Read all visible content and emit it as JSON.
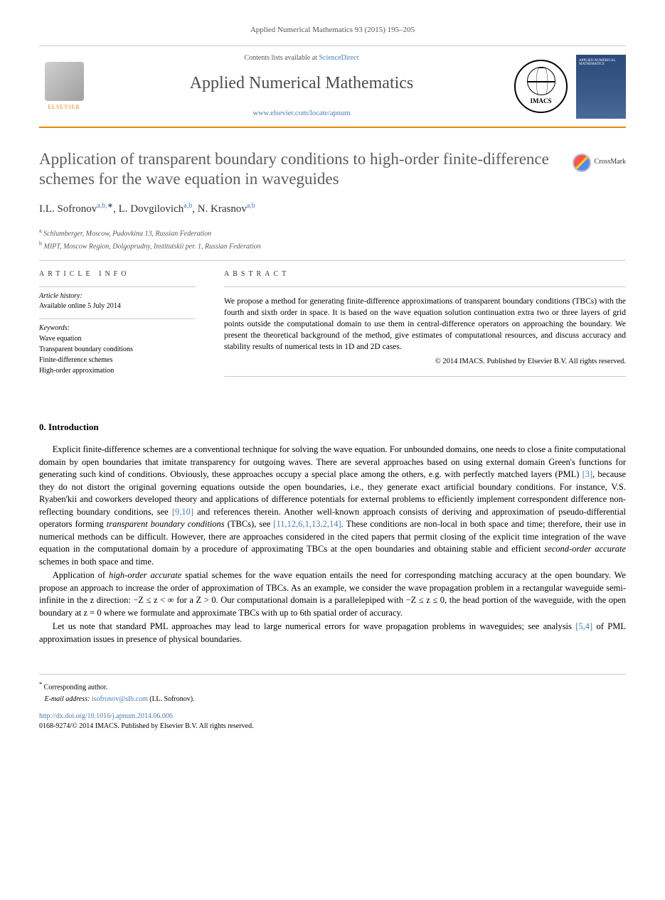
{
  "citation": "Applied Numerical Mathematics 93 (2015) 195–205",
  "header": {
    "contents_prefix": "Contents lists available at ",
    "contents_link": "ScienceDirect",
    "journal_title": "Applied Numerical Mathematics",
    "journal_url": "www.elsevier.com/locate/apnum",
    "elsevier_label": "ELSEVIER",
    "imacs_label": "IMACS",
    "cover_title": "APPLIED NUMERICAL MATHEMATICS"
  },
  "crossmark_label": "CrossMark",
  "title": "Application of transparent boundary conditions to high-order finite-difference schemes for the wave equation in waveguides",
  "authors": [
    {
      "name": "I.L. Sofronov",
      "affil": "a,b,",
      "star": "∗"
    },
    {
      "name": "L. Dovgilovich",
      "affil": "a,b",
      "star": ""
    },
    {
      "name": "N. Krasnov",
      "affil": "a,b",
      "star": ""
    }
  ],
  "affiliations": [
    {
      "marker": "a",
      "text": "Schlumberger, Moscow, Pudovkina 13, Russian Federation"
    },
    {
      "marker": "b",
      "text": "MIPT, Moscow Region, Dolgoprudny, Institutskii per. 1, Russian Federation"
    }
  ],
  "article_info": {
    "heading": "ARTICLE INFO",
    "history_label": "Article history:",
    "history_text": "Available online 5 July 2014",
    "keywords_label": "Keywords:",
    "keywords": [
      "Wave equation",
      "Transparent boundary conditions",
      "Finite-difference schemes",
      "High-order approximation"
    ]
  },
  "abstract": {
    "heading": "ABSTRACT",
    "text": "We propose a method for generating finite-difference approximations of transparent boundary conditions (TBCs) with the fourth and sixth order in space. It is based on the wave equation solution continuation extra two or three layers of grid points outside the computational domain to use them in central-difference operators on approaching the boundary. We present the theoretical background of the method, give estimates of computational resources, and discuss accuracy and stability results of numerical tests in 1D and 2D cases.",
    "copyright": "© 2014 IMACS. Published by Elsevier B.V. All rights reserved."
  },
  "intro": {
    "heading": "0. Introduction",
    "p1_a": "Explicit finite-difference schemes are a conventional technique for solving the wave equation. For unbounded domains, one needs to close a finite computational domain by open boundaries that imitate transparency for outgoing waves. There are several approaches based on using external domain Green's functions for generating such kind of conditions. Obviously, these approaches occupy a special place among the others, e.g. with perfectly matched layers (PML) ",
    "p1_ref1": "[3]",
    "p1_b": ", because they do not distort the original governing equations outside the open boundaries, i.e., they generate exact artificial boundary conditions. For instance, V.S. Ryaben'kii and coworkers developed theory and applications of difference potentials for external problems to efficiently implement correspondent difference non-reflecting boundary conditions, see ",
    "p1_ref2": "[9,10]",
    "p1_c": " and references therein. Another well-known approach consists of deriving and approximation of pseudo-differential operators forming ",
    "p1_em1": "transparent boundary conditions",
    "p1_d": " (TBCs), see ",
    "p1_ref3": "[11,12,6,1,13,2,14]",
    "p1_e": ". These conditions are non-local in both space and time; therefore, their use in numerical methods can be difficult. However, there are approaches considered in the cited papers that permit closing of the explicit time integration of the wave equation in the computational domain by a procedure of approximating TBCs at the open boundaries and obtaining stable and efficient ",
    "p1_em2": "second-order accurate",
    "p1_f": " schemes in both space and time.",
    "p2_a": "Application of ",
    "p2_em1": "high-order accurate",
    "p2_b": " spatial schemes for the wave equation entails the need for corresponding matching accuracy at the open boundary. We propose an approach to increase the order of approximation of TBCs. As an example, we consider the wave propagation problem in a rectangular waveguide semi-infinite in the z direction: −Z ≤ z < ∞ for a Z > 0. Our computational domain is a parallelepiped with −Z ≤ z ≤ 0, the head portion of the waveguide, with the open boundary at z = 0 where we formulate and approximate TBCs with up to 6th spatial order of accuracy.",
    "p3_a": "Let us note that standard PML approaches may lead to large numerical errors for wave propagation problems in waveguides; see analysis ",
    "p3_ref1": "[5,4]",
    "p3_b": " of PML approximation issues in presence of physical boundaries."
  },
  "footer": {
    "corresponding": "Corresponding author.",
    "email_label": "E-mail address:",
    "email": "isofronov@slb.com",
    "email_author": "(I.L. Sofronov).",
    "doi": "http://dx.doi.org/10.1016/j.apnum.2014.06.006",
    "issn_copyright": "0168-9274/© 2014 IMACS. Published by Elsevier B.V. All rights reserved."
  },
  "colors": {
    "accent_orange": "#e68a00",
    "link_blue": "#4a7cb8",
    "text_gray": "#5d5d5d",
    "rule_gray": "#cccccc",
    "background": "#ffffff"
  }
}
